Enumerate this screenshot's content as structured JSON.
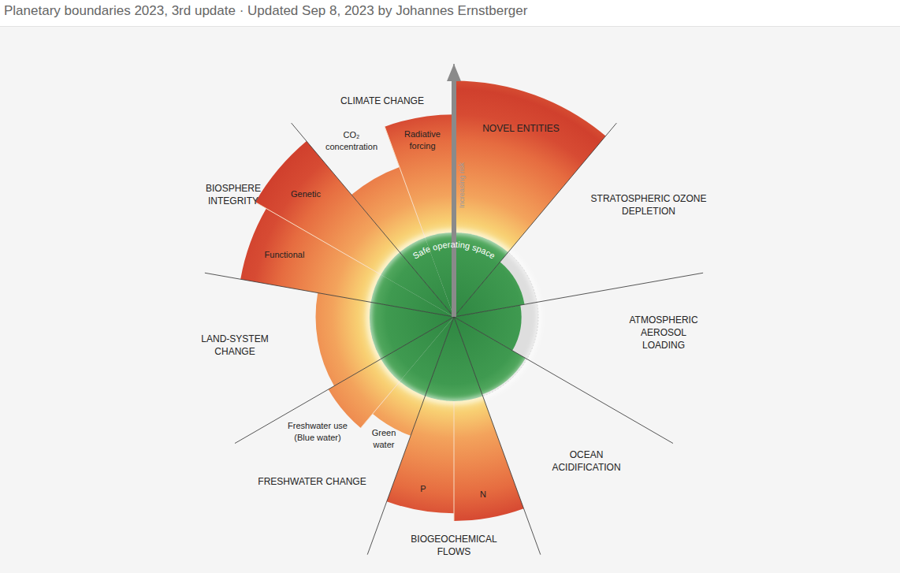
{
  "chart_data": {
    "type": "polar_bar",
    "title": "Planetary boundaries 2023, 3rd update · Updated Sep 8, 2023 by Johannes Ernstberger",
    "center_label": "Safe operating space",
    "axis_label": "Increasing risk",
    "ylim": [
      0,
      3
    ],
    "boundary": 1,
    "tick_labels": false,
    "groups": [
      {
        "label": [
          "NOVEL ENTITIES"
        ],
        "categories": [
          null
        ],
        "values": [
          2.8
        ]
      },
      {
        "label": [
          "STRATOSPHERIC OZONE",
          "DEPLETION"
        ],
        "categories": [
          null
        ],
        "values": [
          0.85
        ]
      },
      {
        "label": [
          "ATMOSPHERIC",
          "AEROSOL",
          "LOADING"
        ],
        "categories": [
          null
        ],
        "values": [
          0.8
        ]
      },
      {
        "label": [
          "OCEAN",
          "ACIDIFICATION"
        ],
        "categories": [
          null
        ],
        "values": [
          0.98
        ]
      },
      {
        "label": [
          "BIOGEOCHEMICAL",
          "FLOWS"
        ],
        "categories": [
          [
            "N"
          ],
          [
            "P"
          ]
        ],
        "values": [
          2.42,
          2.33
        ]
      },
      {
        "label": [
          "FRESHWATER CHANGE"
        ],
        "categories": [
          [
            "Green",
            "water"
          ],
          [
            "Freshwater use",
            "(Blue water)"
          ]
        ],
        "values": [
          1.5,
          1.72
        ]
      },
      {
        "label": [
          "LAND-SYSTEM",
          "CHANGE"
        ],
        "categories": [
          null
        ],
        "values": [
          1.64
        ]
      },
      {
        "label": [
          "BIOSPHERE",
          "INTEGRITY"
        ],
        "categories": [
          [
            "Functional"
          ],
          [
            "Genetic"
          ]
        ],
        "values": [
          2.57,
          2.72
        ]
      },
      {
        "label": [
          "CLIMATE CHANGE"
        ],
        "categories": [
          [
            "CO₂",
            "concentration"
          ],
          [
            "Radiative",
            "forcing"
          ]
        ],
        "values": [
          1.89,
          2.4
        ]
      }
    ]
  }
}
